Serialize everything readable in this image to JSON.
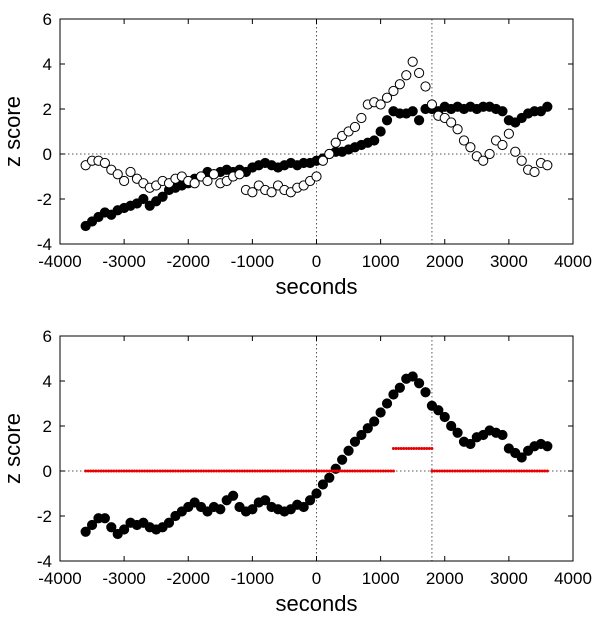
{
  "chart_data": [
    {
      "type": "scatter",
      "xlabel": "seconds",
      "ylabel": "z score",
      "xlim": [
        -4000,
        4000
      ],
      "ylim": [
        -4,
        6
      ],
      "x_ticks": [
        "-4000",
        "-3000",
        "-2000",
        "-1000",
        "0",
        "1000",
        "2000",
        "3000",
        "4000"
      ],
      "y_ticks": [
        "-4",
        "-2",
        "0",
        "2",
        "4",
        "6"
      ],
      "reference_lines": {
        "vertical": [
          0,
          1800
        ],
        "horizontal": [
          0
        ],
        "style": "dotted"
      },
      "grid": false,
      "series": [
        {
          "style": "filled",
          "color": "#000000",
          "points": [
            [
              -3600,
              -3.2
            ],
            [
              -3500,
              -3.0
            ],
            [
              -3400,
              -2.8
            ],
            [
              -3300,
              -2.6
            ],
            [
              -3200,
              -2.7
            ],
            [
              -3100,
              -2.5
            ],
            [
              -3000,
              -2.4
            ],
            [
              -2900,
              -2.3
            ],
            [
              -2800,
              -2.2
            ],
            [
              -2700,
              -2.0
            ],
            [
              -2600,
              -2.3
            ],
            [
              -2500,
              -2.1
            ],
            [
              -2400,
              -1.9
            ],
            [
              -2300,
              -1.6
            ],
            [
              -2200,
              -1.5
            ],
            [
              -2100,
              -1.4
            ],
            [
              -2000,
              -1.3
            ],
            [
              -1900,
              -1.1
            ],
            [
              -1800,
              -1.0
            ],
            [
              -1700,
              -0.8
            ],
            [
              -1600,
              -0.9
            ],
            [
              -1500,
              -0.8
            ],
            [
              -1400,
              -0.7
            ],
            [
              -1300,
              -0.8
            ],
            [
              -1200,
              -0.7
            ],
            [
              -1100,
              -0.8
            ],
            [
              -1000,
              -0.6
            ],
            [
              -900,
              -0.5
            ],
            [
              -800,
              -0.4
            ],
            [
              -700,
              -0.5
            ],
            [
              -600,
              -0.6
            ],
            [
              -500,
              -0.5
            ],
            [
              -400,
              -0.4
            ],
            [
              -300,
              -0.5
            ],
            [
              -200,
              -0.4
            ],
            [
              -100,
              -0.4
            ],
            [
              0,
              -0.3
            ],
            [
              100,
              -0.2
            ],
            [
              200,
              0.0
            ],
            [
              300,
              0.1
            ],
            [
              400,
              0.1
            ],
            [
              500,
              0.2
            ],
            [
              600,
              0.3
            ],
            [
              700,
              0.4
            ],
            [
              800,
              0.5
            ],
            [
              900,
              0.6
            ],
            [
              1000,
              1.0
            ],
            [
              1100,
              1.5
            ],
            [
              1200,
              1.9
            ],
            [
              1300,
              1.8
            ],
            [
              1400,
              1.8
            ],
            [
              1500,
              1.9
            ],
            [
              1600,
              1.5
            ],
            [
              1700,
              2.0
            ],
            [
              1800,
              2.0
            ],
            [
              1900,
              1.9
            ],
            [
              2000,
              2.1
            ],
            [
              2100,
              2.0
            ],
            [
              2200,
              2.1
            ],
            [
              2300,
              2.0
            ],
            [
              2400,
              2.1
            ],
            [
              2500,
              2.0
            ],
            [
              2600,
              2.1
            ],
            [
              2700,
              2.1
            ],
            [
              2800,
              2.0
            ],
            [
              2900,
              1.9
            ],
            [
              3000,
              1.5
            ],
            [
              3100,
              1.4
            ],
            [
              3200,
              1.6
            ],
            [
              3300,
              1.8
            ],
            [
              3400,
              1.9
            ],
            [
              3500,
              1.9
            ],
            [
              3600,
              2.1
            ]
          ]
        },
        {
          "style": "open",
          "color": "#000000",
          "points": [
            [
              -3600,
              -0.5
            ],
            [
              -3500,
              -0.3
            ],
            [
              -3400,
              -0.3
            ],
            [
              -3300,
              -0.4
            ],
            [
              -3200,
              -0.7
            ],
            [
              -3100,
              -0.9
            ],
            [
              -3000,
              -1.2
            ],
            [
              -2900,
              -0.8
            ],
            [
              -2800,
              -1.1
            ],
            [
              -2700,
              -1.3
            ],
            [
              -2600,
              -1.5
            ],
            [
              -2500,
              -1.4
            ],
            [
              -2400,
              -1.2
            ],
            [
              -2300,
              -1.3
            ],
            [
              -2200,
              -1.1
            ],
            [
              -2100,
              -1.0
            ],
            [
              -2000,
              -1.2
            ],
            [
              -1900,
              -1.3
            ],
            [
              -1800,
              -1.0
            ],
            [
              -1700,
              -1.2
            ],
            [
              -1600,
              -0.9
            ],
            [
              -1500,
              -1.3
            ],
            [
              -1400,
              -1.2
            ],
            [
              -1300,
              -1.0
            ],
            [
              -1200,
              -0.9
            ],
            [
              -1100,
              -1.6
            ],
            [
              -1000,
              -1.7
            ],
            [
              -900,
              -1.4
            ],
            [
              -800,
              -1.6
            ],
            [
              -700,
              -1.7
            ],
            [
              -600,
              -1.4
            ],
            [
              -500,
              -1.6
            ],
            [
              -400,
              -1.7
            ],
            [
              -300,
              -1.5
            ],
            [
              -200,
              -1.4
            ],
            [
              -100,
              -1.2
            ],
            [
              0,
              -1.0
            ],
            [
              100,
              -0.3
            ],
            [
              200,
              0.0
            ],
            [
              300,
              0.5
            ],
            [
              400,
              0.8
            ],
            [
              500,
              1.0
            ],
            [
              600,
              1.2
            ],
            [
              700,
              1.6
            ],
            [
              800,
              2.2
            ],
            [
              900,
              2.3
            ],
            [
              1000,
              2.2
            ],
            [
              1100,
              2.5
            ],
            [
              1200,
              2.8
            ],
            [
              1300,
              3.1
            ],
            [
              1400,
              3.5
            ],
            [
              1500,
              4.1
            ],
            [
              1600,
              3.6
            ],
            [
              1700,
              3.0
            ],
            [
              1800,
              2.2
            ],
            [
              1900,
              1.7
            ],
            [
              2000,
              1.6
            ],
            [
              2100,
              1.4
            ],
            [
              2200,
              1.1
            ],
            [
              2300,
              0.6
            ],
            [
              2400,
              0.3
            ],
            [
              2500,
              -0.1
            ],
            [
              2600,
              -0.3
            ],
            [
              2700,
              0.0
            ],
            [
              2800,
              0.6
            ],
            [
              2900,
              0.4
            ],
            [
              3000,
              0.9
            ],
            [
              3100,
              0.1
            ],
            [
              3200,
              -0.3
            ],
            [
              3300,
              -0.7
            ],
            [
              3400,
              -0.8
            ],
            [
              3500,
              -0.4
            ],
            [
              3600,
              -0.5
            ]
          ]
        }
      ]
    },
    {
      "type": "scatter",
      "xlabel": "seconds",
      "ylabel": "z score",
      "xlim": [
        -4000,
        4000
      ],
      "ylim": [
        -4,
        6
      ],
      "x_ticks": [
        "-4000",
        "-3000",
        "-2000",
        "-1000",
        "0",
        "1000",
        "2000",
        "3000",
        "4000"
      ],
      "y_ticks": [
        "-4",
        "-2",
        "0",
        "2",
        "4",
        "6"
      ],
      "reference_lines": {
        "vertical": [
          0,
          1800
        ],
        "horizontal": [
          0
        ],
        "style": "dotted"
      },
      "grid": false,
      "series": [
        {
          "style": "filled",
          "color": "#000000",
          "points": [
            [
              -3600,
              -2.7
            ],
            [
              -3500,
              -2.4
            ],
            [
              -3400,
              -2.1
            ],
            [
              -3300,
              -2.1
            ],
            [
              -3200,
              -2.5
            ],
            [
              -3100,
              -2.8
            ],
            [
              -3000,
              -2.6
            ],
            [
              -2900,
              -2.3
            ],
            [
              -2800,
              -2.4
            ],
            [
              -2700,
              -2.3
            ],
            [
              -2600,
              -2.5
            ],
            [
              -2500,
              -2.6
            ],
            [
              -2400,
              -2.5
            ],
            [
              -2300,
              -2.3
            ],
            [
              -2200,
              -2.0
            ],
            [
              -2100,
              -1.8
            ],
            [
              -2000,
              -1.6
            ],
            [
              -1900,
              -1.4
            ],
            [
              -1800,
              -1.6
            ],
            [
              -1700,
              -1.8
            ],
            [
              -1600,
              -1.6
            ],
            [
              -1500,
              -1.7
            ],
            [
              -1400,
              -1.3
            ],
            [
              -1300,
              -1.1
            ],
            [
              -1200,
              -1.6
            ],
            [
              -1100,
              -1.8
            ],
            [
              -1000,
              -1.7
            ],
            [
              -900,
              -1.4
            ],
            [
              -800,
              -1.3
            ],
            [
              -700,
              -1.6
            ],
            [
              -600,
              -1.7
            ],
            [
              -500,
              -1.8
            ],
            [
              -400,
              -1.7
            ],
            [
              -300,
              -1.5
            ],
            [
              -200,
              -1.6
            ],
            [
              -100,
              -1.3
            ],
            [
              0,
              -1.0
            ],
            [
              100,
              -0.6
            ],
            [
              200,
              -0.3
            ],
            [
              300,
              0.1
            ],
            [
              400,
              0.5
            ],
            [
              500,
              0.9
            ],
            [
              600,
              1.3
            ],
            [
              700,
              1.6
            ],
            [
              800,
              1.9
            ],
            [
              900,
              2.2
            ],
            [
              1000,
              2.6
            ],
            [
              1100,
              3.0
            ],
            [
              1200,
              3.4
            ],
            [
              1300,
              3.7
            ],
            [
              1400,
              4.1
            ],
            [
              1500,
              4.2
            ],
            [
              1600,
              3.9
            ],
            [
              1700,
              3.5
            ],
            [
              1800,
              2.9
            ],
            [
              1900,
              2.7
            ],
            [
              2000,
              2.4
            ],
            [
              2100,
              2.0
            ],
            [
              2200,
              1.7
            ],
            [
              2300,
              1.3
            ],
            [
              2400,
              1.2
            ],
            [
              2500,
              1.5
            ],
            [
              2600,
              1.6
            ],
            [
              2700,
              1.8
            ],
            [
              2800,
              1.7
            ],
            [
              2900,
              1.6
            ],
            [
              3000,
              1.0
            ],
            [
              3100,
              0.8
            ],
            [
              3200,
              0.6
            ],
            [
              3300,
              0.9
            ],
            [
              3400,
              1.1
            ],
            [
              3500,
              1.2
            ],
            [
              3600,
              1.1
            ]
          ]
        },
        {
          "style": "segment",
          "color": "#e60000",
          "segments": [
            [
              [
                -3600,
                1200
              ],
              0
            ],
            [
              [
                1200,
                1800
              ],
              1
            ],
            [
              [
                1800,
                3600
              ],
              0
            ]
          ]
        }
      ]
    }
  ]
}
